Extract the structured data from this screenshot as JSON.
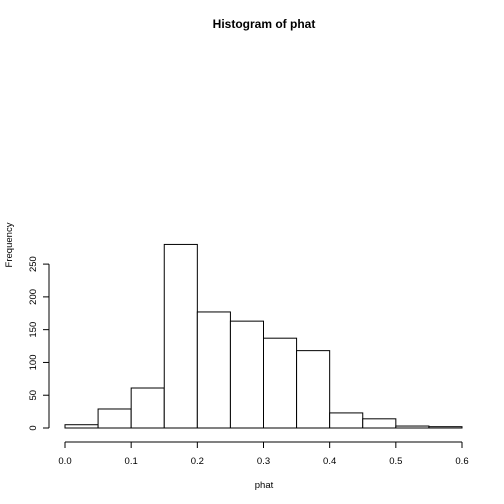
{
  "chart_data": {
    "type": "bar",
    "title": "Histogram of phat",
    "xlabel": "phat",
    "ylabel": "Frequency",
    "bin_edges": [
      0.0,
      0.05,
      0.1,
      0.15,
      0.2,
      0.25,
      0.3,
      0.35,
      0.4,
      0.45,
      0.5,
      0.55,
      0.6
    ],
    "values": [
      5,
      29,
      61,
      280,
      177,
      163,
      137,
      118,
      23,
      14,
      3,
      2
    ],
    "xlim": [
      0.0,
      0.6
    ],
    "ylim": [
      0,
      250
    ],
    "x_ticks": [
      0.0,
      0.1,
      0.2,
      0.3,
      0.4,
      0.5,
      0.6
    ],
    "x_tick_labels": [
      "0.0",
      "0.1",
      "0.2",
      "0.3",
      "0.4",
      "0.5",
      "0.6"
    ],
    "y_ticks": [
      0,
      50,
      100,
      150,
      200,
      250
    ],
    "y_tick_labels": [
      "0",
      "50",
      "100",
      "150",
      "200",
      "250"
    ],
    "grid": false
  }
}
